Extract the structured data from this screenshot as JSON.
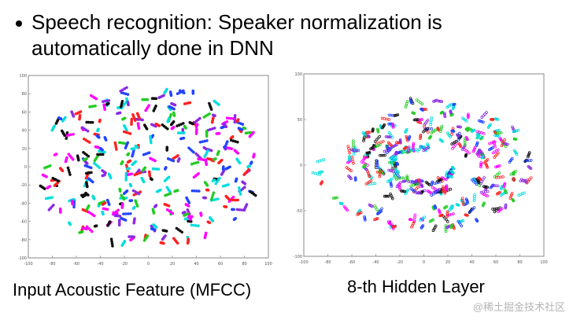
{
  "slide": {
    "bullet": "Speech recognition: Speaker normalization is automatically done in DNN"
  },
  "plots": [
    {
      "caption": "Input Acoustic Feature (MFCC)",
      "x_ticks": [
        "-100",
        "-80",
        "-60",
        "-40",
        "-20",
        "0",
        "20",
        "40",
        "60",
        "80",
        "100"
      ],
      "y_ticks": [
        "100",
        "80",
        "60",
        "40",
        "20",
        "0",
        "-20",
        "-40",
        "-60",
        "-80",
        "-100"
      ]
    },
    {
      "caption": "8-th Hidden Layer",
      "x_ticks": [
        "-100",
        "-80",
        "-60",
        "-40",
        "-20",
        "0",
        "20",
        "40",
        "60",
        "80",
        "100"
      ],
      "y_ticks": [
        "100",
        "50",
        "0",
        "-50",
        "-100"
      ]
    }
  ],
  "palette": [
    "#ff00ff",
    "#00dddd",
    "#ff2020",
    "#22cc22",
    "#8a2be2",
    "#111111",
    "#2244ff"
  ],
  "watermark": "@稀土掘金技术社区"
}
